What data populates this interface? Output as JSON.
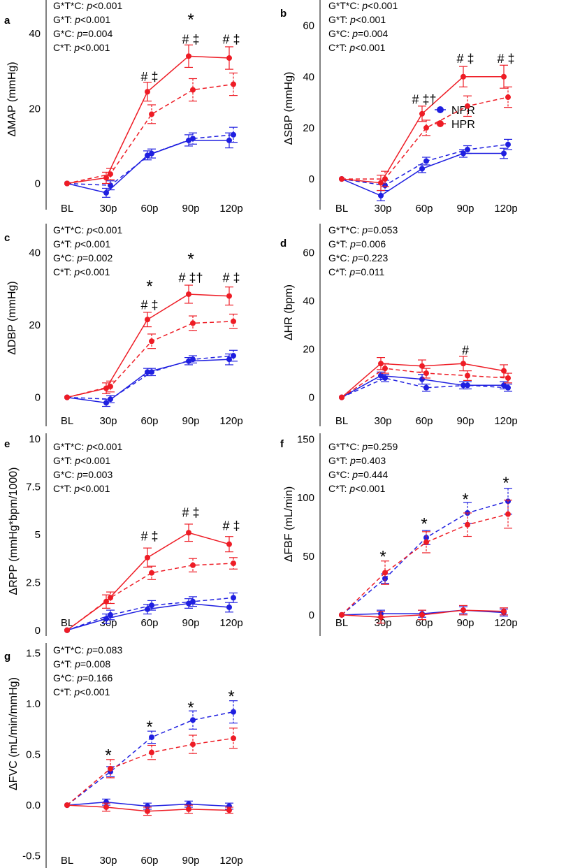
{
  "legend": [
    {
      "label": "NPR",
      "color": "#1f1fe0"
    },
    {
      "label": "HPR",
      "color": "#ee1c25"
    }
  ],
  "colors": {
    "npr": "#1f1fe0",
    "hpr": "#ee1c25"
  },
  "chart_data": [
    {
      "id": "a",
      "letter": "a",
      "type": "line",
      "ylabel": "ΔMAP (mmHg)",
      "ylim": [
        -7,
        49
      ],
      "yticks": [
        {
          "v": 0,
          "t": "0"
        },
        {
          "v": 20,
          "t": "20"
        },
        {
          "v": 40,
          "t": "40"
        }
      ],
      "categories": [
        "BL",
        "30p",
        "60p",
        "90p",
        "120p"
      ],
      "stats": [
        {
          "label": "G*T*C: ",
          "p": "p",
          "value": "<0.001"
        },
        {
          "label": "G*T: ",
          "p": "p",
          "value": "<0.001"
        },
        {
          "label": "G*C: ",
          "p": "p",
          "value": "=0.004"
        },
        {
          "label": "C*T: ",
          "p": "p",
          "value": "<0.001"
        }
      ],
      "series": [
        {
          "name": "NPR",
          "condition": "solid",
          "values": [
            0,
            -2.5,
            7.5,
            11.5,
            11.5
          ],
          "errors": [
            0,
            1.2,
            1.2,
            1.5,
            2
          ]
        },
        {
          "name": "NPR",
          "condition": "dashed",
          "values": [
            0,
            -0.5,
            8,
            12,
            13
          ],
          "errors": [
            0,
            1.2,
            1.2,
            1.5,
            2
          ]
        },
        {
          "name": "HPR",
          "condition": "solid",
          "values": [
            0,
            1.5,
            24.5,
            34,
            33.5
          ],
          "errors": [
            0,
            1.5,
            2.5,
            3,
            3
          ]
        },
        {
          "name": "HPR",
          "condition": "dashed",
          "values": [
            0,
            2.5,
            18.5,
            25,
            26.5
          ],
          "errors": [
            0,
            1.5,
            2.5,
            3,
            3
          ]
        }
      ],
      "annotations": [
        {
          "cat": 2,
          "y": 28.5,
          "text": "# ‡",
          "kind": "sig"
        },
        {
          "cat": 3,
          "y": 38.5,
          "text": "# ‡",
          "kind": "sig"
        },
        {
          "cat": 3,
          "y": 44.5,
          "text": "*",
          "kind": "star"
        },
        {
          "cat": 4,
          "y": 38.5,
          "text": "# ‡",
          "kind": "sig"
        }
      ]
    },
    {
      "id": "b",
      "letter": "b",
      "type": "line",
      "ylabel": "ΔSBP (mmHg)",
      "ylim": [
        -12,
        70
      ],
      "yticks": [
        {
          "v": 0,
          "t": "0"
        },
        {
          "v": 20,
          "t": "20"
        },
        {
          "v": 40,
          "t": "40"
        },
        {
          "v": 60,
          "t": "60"
        }
      ],
      "categories": [
        "BL",
        "30p",
        "60p",
        "90p",
        "120p"
      ],
      "stats": [
        {
          "label": "G*T*C: ",
          "p": "p",
          "value": "<0.001"
        },
        {
          "label": "G*T: ",
          "p": "p",
          "value": "<0.001"
        },
        {
          "label": "G*C: ",
          "p": "p",
          "value": "=0.004"
        },
        {
          "label": "C*T: ",
          "p": "p",
          "value": "<0.001"
        }
      ],
      "series": [
        {
          "name": "NPR",
          "condition": "solid",
          "values": [
            0,
            -6.5,
            4,
            10,
            10
          ],
          "errors": [
            0,
            2,
            1.5,
            1.5,
            2
          ]
        },
        {
          "name": "NPR",
          "condition": "dashed",
          "values": [
            0,
            -2.5,
            7,
            11.5,
            13.5
          ],
          "errors": [
            0,
            2,
            1.5,
            1.5,
            2
          ]
        },
        {
          "name": "HPR",
          "condition": "solid",
          "values": [
            0,
            -1.5,
            25.5,
            40,
            40
          ],
          "errors": [
            0,
            3,
            3,
            4,
            4.5
          ]
        },
        {
          "name": "HPR",
          "condition": "dashed",
          "values": [
            0,
            0,
            20,
            28.5,
            32
          ],
          "errors": [
            0,
            3,
            3,
            4,
            4
          ]
        }
      ],
      "annotations": [
        {
          "cat": 2,
          "y": 31,
          "text": "# ‡†",
          "kind": "sig"
        },
        {
          "cat": 3,
          "y": 47,
          "text": "# ‡",
          "kind": "sig"
        },
        {
          "cat": 4,
          "y": 47,
          "text": "# ‡",
          "kind": "sig"
        }
      ]
    },
    {
      "id": "c",
      "letter": "c",
      "type": "line",
      "ylabel": "ΔDBP (mmHg)",
      "ylim": [
        -8,
        48
      ],
      "yticks": [
        {
          "v": 0,
          "t": "0"
        },
        {
          "v": 20,
          "t": "20"
        },
        {
          "v": 40,
          "t": "40"
        }
      ],
      "categories": [
        "BL",
        "30p",
        "60p",
        "90p",
        "120p"
      ],
      "stats": [
        {
          "label": "G*T*C: ",
          "p": "p",
          "value": "<0.001"
        },
        {
          "label": "G*T: ",
          "p": "p",
          "value": "<0.001"
        },
        {
          "label": "G*C: ",
          "p": "p",
          "value": "=0.002"
        },
        {
          "label": "C*T: ",
          "p": "p",
          "value": "<0.001"
        }
      ],
      "series": [
        {
          "name": "NPR",
          "condition": "solid",
          "values": [
            0,
            -1.5,
            7,
            10,
            10.5
          ],
          "errors": [
            0,
            1,
            1,
            1,
            1.5
          ]
        },
        {
          "name": "NPR",
          "condition": "dashed",
          "values": [
            0,
            -0.5,
            7,
            10.5,
            11.5
          ],
          "errors": [
            0,
            1,
            1,
            1,
            1.5
          ]
        },
        {
          "name": "HPR",
          "condition": "solid",
          "values": [
            0,
            2.5,
            21.5,
            28.5,
            28
          ],
          "errors": [
            0,
            1.5,
            2,
            2.5,
            2.5
          ]
        },
        {
          "name": "HPR",
          "condition": "dashed",
          "values": [
            0,
            3,
            15.5,
            20.5,
            21
          ],
          "errors": [
            0,
            1.5,
            2,
            2,
            2
          ]
        }
      ],
      "annotations": [
        {
          "cat": 2,
          "y": 25.5,
          "text": "# ‡",
          "kind": "sig"
        },
        {
          "cat": 2,
          "y": 31.5,
          "text": "*",
          "kind": "star"
        },
        {
          "cat": 3,
          "y": 33,
          "text": "# ‡†",
          "kind": "sig"
        },
        {
          "cat": 3,
          "y": 39,
          "text": "*",
          "kind": "star"
        },
        {
          "cat": 4,
          "y": 33,
          "text": "# ‡",
          "kind": "sig"
        }
      ]
    },
    {
      "id": "d",
      "letter": "d",
      "type": "line",
      "ylabel": "ΔHR (bpm)",
      "ylim": [
        -12,
        72
      ],
      "yticks": [
        {
          "v": 0,
          "t": "0"
        },
        {
          "v": 20,
          "t": "20"
        },
        {
          "v": 40,
          "t": "40"
        },
        {
          "v": 60,
          "t": "60"
        }
      ],
      "categories": [
        "BL",
        "30p",
        "60p",
        "90p",
        "120p"
      ],
      "stats": [
        {
          "label": "G*T*C: ",
          "p": "p",
          "value": "=0.053"
        },
        {
          "label": "G*T: ",
          "p": "p",
          "value": "=0.006"
        },
        {
          "label": "G*C: ",
          "p": "p",
          "value": "=0.223"
        },
        {
          "label": "C*T: ",
          "p": "p",
          "value": "=0.011"
        }
      ],
      "series": [
        {
          "name": "NPR",
          "condition": "solid",
          "values": [
            0,
            9,
            7.5,
            5,
            5
          ],
          "errors": [
            0,
            1.5,
            2,
            1.5,
            1.5
          ]
        },
        {
          "name": "NPR",
          "condition": "dashed",
          "values": [
            0,
            8,
            4,
            5,
            4
          ],
          "errors": [
            0,
            1.5,
            1.5,
            1.5,
            1.5
          ]
        },
        {
          "name": "HPR",
          "condition": "solid",
          "values": [
            0,
            14,
            13,
            14,
            11
          ],
          "errors": [
            0,
            2.5,
            2.5,
            3,
            2.5
          ]
        },
        {
          "name": "HPR",
          "condition": "dashed",
          "values": [
            0,
            12,
            10,
            9,
            8
          ],
          "errors": [
            0,
            2,
            2,
            2,
            2
          ]
        }
      ],
      "annotations": [
        {
          "cat": 3,
          "y": 19.5,
          "text": "#",
          "kind": "sig"
        }
      ]
    },
    {
      "id": "e",
      "letter": "e",
      "type": "line",
      "ylabel": "ΔRPP (mmHg*bpm/1000)",
      "ylim": [
        -0.3,
        10.3
      ],
      "yticks": [
        {
          "v": 0,
          "t": "0"
        },
        {
          "v": 2.5,
          "t": "2.5"
        },
        {
          "v": 5,
          "t": "5"
        },
        {
          "v": 7.5,
          "t": "7.5"
        },
        {
          "v": 10,
          "t": "10"
        }
      ],
      "categories": [
        "BL",
        "30p",
        "60p",
        "90p",
        "120p"
      ],
      "stats": [
        {
          "label": "G*T*C: ",
          "p": "p",
          "value": "<0.001"
        },
        {
          "label": "G*T: ",
          "p": "p",
          "value": "<0.001"
        },
        {
          "label": "G*C: ",
          "p": "p",
          "value": "=0.003"
        },
        {
          "label": "C*T: ",
          "p": "p",
          "value": "<0.001"
        }
      ],
      "series": [
        {
          "name": "NPR",
          "condition": "solid",
          "values": [
            0,
            0.6,
            1.1,
            1.4,
            1.2
          ],
          "errors": [
            0,
            0.25,
            0.25,
            0.25,
            0.25
          ]
        },
        {
          "name": "NPR",
          "condition": "dashed",
          "values": [
            0,
            0.8,
            1.3,
            1.5,
            1.7
          ],
          "errors": [
            0,
            0.25,
            0.25,
            0.25,
            0.25
          ]
        },
        {
          "name": "HPR",
          "condition": "solid",
          "values": [
            0,
            1.5,
            3.8,
            5.1,
            4.5
          ],
          "errors": [
            0,
            0.35,
            0.5,
            0.45,
            0.4
          ]
        },
        {
          "name": "HPR",
          "condition": "dashed",
          "values": [
            0,
            1.7,
            3,
            3.4,
            3.5
          ],
          "errors": [
            0,
            0.3,
            0.35,
            0.35,
            0.3
          ]
        }
      ],
      "annotations": [
        {
          "cat": 2,
          "y": 4.9,
          "text": "# ‡",
          "kind": "sig"
        },
        {
          "cat": 3,
          "y": 6.15,
          "text": "# ‡",
          "kind": "sig"
        },
        {
          "cat": 4,
          "y": 5.45,
          "text": "# ‡",
          "kind": "sig"
        }
      ]
    },
    {
      "id": "f",
      "letter": "f",
      "type": "line",
      "ylabel": "ΔFBF (mL/min)",
      "ylim": [
        -18,
        155
      ],
      "yticks": [
        {
          "v": 0,
          "t": "0"
        },
        {
          "v": 50,
          "t": "50"
        },
        {
          "v": 100,
          "t": "100"
        },
        {
          "v": 150,
          "t": "150"
        }
      ],
      "categories": [
        "BL",
        "30p",
        "60p",
        "90p",
        "120p"
      ],
      "stats": [
        {
          "label": "G*T*C: ",
          "p": "p",
          "value": "=0.259"
        },
        {
          "label": "G*T: ",
          "p": "p",
          "value": "=0.403"
        },
        {
          "label": "G*C: ",
          "p": "p",
          "value": "=0.444"
        },
        {
          "label": "C*T: ",
          "p": "p",
          "value": "<0.001"
        }
      ],
      "series": [
        {
          "name": "NPR",
          "condition": "solid",
          "values": [
            0,
            1,
            1,
            4,
            2
          ],
          "errors": [
            0,
            3,
            3,
            3,
            3
          ]
        },
        {
          "name": "NPR",
          "condition": "dashed",
          "values": [
            0,
            31,
            66,
            87,
            97
          ],
          "errors": [
            0,
            4,
            6,
            9,
            11
          ]
        },
        {
          "name": "HPR",
          "condition": "solid",
          "values": [
            0,
            -2,
            0,
            4,
            3
          ],
          "errors": [
            0,
            5,
            4,
            4,
            3
          ]
        },
        {
          "name": "HPR",
          "condition": "dashed",
          "values": [
            0,
            36,
            62,
            77,
            86
          ],
          "errors": [
            0,
            10,
            9,
            10,
            12
          ]
        }
      ],
      "annotations": [
        {
          "cat": 1,
          "y": 52,
          "text": "*",
          "kind": "star"
        },
        {
          "cat": 2,
          "y": 80,
          "text": "*",
          "kind": "star"
        },
        {
          "cat": 3,
          "y": 101,
          "text": "*",
          "kind": "star"
        },
        {
          "cat": 4,
          "y": 115,
          "text": "*",
          "kind": "star"
        }
      ]
    },
    {
      "id": "g",
      "letter": "g",
      "type": "line",
      "ylabel": "ΔFVC (mL/min/mmHg)",
      "ylim": [
        -0.62,
        1.6
      ],
      "yticks": [
        {
          "v": -0.5,
          "t": "-0.5"
        },
        {
          "v": 0,
          "t": "0.0"
        },
        {
          "v": 0.5,
          "t": "0.5"
        },
        {
          "v": 1,
          "t": "1.0"
        },
        {
          "v": 1.5,
          "t": "1.5"
        }
      ],
      "categories": [
        "BL",
        "30p",
        "60p",
        "90p",
        "120p"
      ],
      "stats": [
        {
          "label": "G*T*C: ",
          "p": "p",
          "value": "=0.083"
        },
        {
          "label": "G*T: ",
          "p": "p",
          "value": "=0.008"
        },
        {
          "label": "G*C: ",
          "p": "p",
          "value": "=0.166"
        },
        {
          "label": "C*T: ",
          "p": "p",
          "value": "<0.001"
        }
      ],
      "series": [
        {
          "name": "NPR",
          "condition": "solid",
          "values": [
            0,
            0.03,
            -0.01,
            0.01,
            -0.01
          ],
          "errors": [
            0,
            0.03,
            0.03,
            0.03,
            0.03
          ]
        },
        {
          "name": "NPR",
          "condition": "dashed",
          "values": [
            0,
            0.33,
            0.67,
            0.84,
            0.92
          ],
          "errors": [
            0,
            0.05,
            0.06,
            0.09,
            0.11
          ]
        },
        {
          "name": "HPR",
          "condition": "solid",
          "values": [
            0,
            -0.02,
            -0.06,
            -0.04,
            -0.05
          ],
          "errors": [
            0,
            0.04,
            0.04,
            0.04,
            0.03
          ]
        },
        {
          "name": "HPR",
          "condition": "dashed",
          "values": [
            0,
            0.36,
            0.52,
            0.6,
            0.66
          ],
          "errors": [
            0,
            0.09,
            0.07,
            0.09,
            0.1
          ]
        }
      ],
      "annotations": [
        {
          "cat": 1,
          "y": 0.52,
          "text": "*",
          "kind": "star"
        },
        {
          "cat": 2,
          "y": 0.8,
          "text": "*",
          "kind": "star"
        },
        {
          "cat": 3,
          "y": 0.99,
          "text": "*",
          "kind": "star"
        },
        {
          "cat": 4,
          "y": 1.1,
          "text": "*",
          "kind": "star"
        }
      ]
    }
  ]
}
